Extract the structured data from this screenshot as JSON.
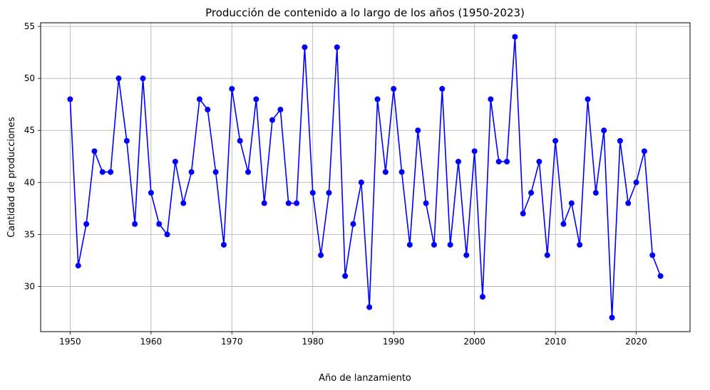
{
  "chart_data": {
    "type": "line",
    "title": "Producción de contenido a lo largo de los años (1950-2023)",
    "xlabel": "Año de lanzamiento",
    "ylabel": "Cantidad de producciones",
    "xlim": [
      1946.35,
      2026.65
    ],
    "ylim": [
      25.65,
      55.35
    ],
    "xticks": [
      1950,
      1960,
      1970,
      1980,
      1990,
      2000,
      2010,
      2020
    ],
    "yticks": [
      30,
      35,
      40,
      45,
      50,
      55
    ],
    "grid": true,
    "line_color": "#0000ff",
    "marker": "circle",
    "x": [
      1950,
      1951,
      1952,
      1953,
      1954,
      1955,
      1956,
      1957,
      1958,
      1959,
      1960,
      1961,
      1962,
      1963,
      1964,
      1965,
      1966,
      1967,
      1968,
      1969,
      1970,
      1971,
      1972,
      1973,
      1974,
      1975,
      1976,
      1977,
      1978,
      1979,
      1980,
      1981,
      1982,
      1983,
      1984,
      1985,
      1986,
      1987,
      1988,
      1989,
      1990,
      1991,
      1992,
      1993,
      1994,
      1995,
      1996,
      1997,
      1998,
      1999,
      2000,
      2001,
      2002,
      2003,
      2004,
      2005,
      2006,
      2007,
      2008,
      2009,
      2010,
      2011,
      2012,
      2013,
      2014,
      2015,
      2016,
      2017,
      2018,
      2019,
      2020,
      2021,
      2022,
      2023
    ],
    "values": [
      48,
      32,
      36,
      43,
      41,
      41,
      50,
      44,
      36,
      50,
      39,
      36,
      35,
      42,
      38,
      41,
      48,
      47,
      41,
      34,
      49,
      44,
      41,
      48,
      38,
      46,
      47,
      38,
      38,
      53,
      39,
      33,
      39,
      53,
      31,
      36,
      40,
      28,
      48,
      41,
      49,
      41,
      34,
      45,
      38,
      34,
      49,
      34,
      42,
      33,
      43,
      29,
      48,
      42,
      42,
      54,
      37,
      39,
      42,
      33,
      44,
      36,
      38,
      34,
      48,
      39,
      45,
      27,
      44,
      38,
      40,
      43,
      33,
      31
    ]
  }
}
